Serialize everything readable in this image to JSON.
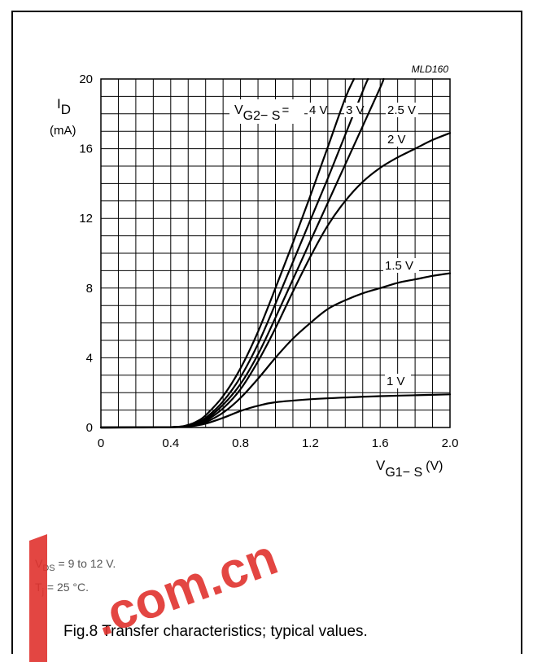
{
  "figure_code": "MLD160",
  "y_axis_label": {
    "main": "I",
    "sub": "D",
    "unit": "(mA)"
  },
  "x_axis_label": {
    "main": "V",
    "sub": "G1− S",
    "unit": "(V)"
  },
  "legend_prefix": {
    "main": "V",
    "sub": "G2− S",
    "suffix": "="
  },
  "notes": {
    "vds": {
      "main": "V",
      "sub": "DS",
      "rest": " = 9 to 12 V."
    },
    "tj": {
      "main": "T",
      "sub": "j",
      "rest": " = 25 °C."
    }
  },
  "caption": "Fig.8  Transfer characteristics; typical values.",
  "watermark": {
    "text": ".com.cn",
    "color": "#e0322e"
  },
  "chart_data": {
    "type": "line",
    "title": "",
    "xlabel": "VG1-S (V)",
    "ylabel": "ID (mA)",
    "xlim": [
      0,
      2.0
    ],
    "ylim": [
      0,
      20
    ],
    "x_ticks": [
      0,
      0.4,
      0.8,
      1.2,
      1.6,
      2.0
    ],
    "x_tick_labels": [
      "0",
      "0.4",
      "0.8",
      "1.2",
      "1.6",
      "2.0"
    ],
    "y_ticks": [
      0,
      4,
      8,
      12,
      16,
      20
    ],
    "y_tick_labels": [
      "0",
      "4",
      "8",
      "12",
      "16",
      "20"
    ],
    "grid": true,
    "series": [
      {
        "name": "4 V",
        "x": [
          0,
          0.4,
          0.5,
          0.55,
          0.6,
          0.7,
          0.8,
          0.9,
          1.0,
          1.1,
          1.2,
          1.3,
          1.4,
          1.45
        ],
        "y": [
          0,
          0.02,
          0.15,
          0.35,
          0.7,
          1.8,
          3.4,
          5.5,
          8.0,
          10.6,
          13.3,
          16.1,
          18.9,
          20.0
        ]
      },
      {
        "name": "3 V",
        "x": [
          0,
          0.4,
          0.5,
          0.55,
          0.6,
          0.7,
          0.8,
          0.9,
          1.0,
          1.1,
          1.2,
          1.3,
          1.4,
          1.5,
          1.53
        ],
        "y": [
          0,
          0.02,
          0.12,
          0.28,
          0.55,
          1.5,
          2.9,
          4.8,
          7.1,
          9.5,
          11.9,
          14.3,
          16.8,
          19.3,
          20.0
        ]
      },
      {
        "name": "2.5 V",
        "x": [
          0,
          0.4,
          0.5,
          0.55,
          0.6,
          0.7,
          0.8,
          0.9,
          1.0,
          1.1,
          1.2,
          1.3,
          1.4,
          1.5,
          1.6,
          1.62
        ],
        "y": [
          0,
          0.02,
          0.1,
          0.22,
          0.45,
          1.3,
          2.5,
          4.2,
          6.3,
          8.5,
          10.7,
          12.9,
          15.1,
          17.3,
          19.5,
          20.0
        ]
      },
      {
        "name": "2 V",
        "x": [
          0,
          0.4,
          0.5,
          0.55,
          0.6,
          0.7,
          0.8,
          0.9,
          1.0,
          1.1,
          1.2,
          1.3,
          1.4,
          1.5,
          1.6,
          1.7,
          1.8,
          1.9,
          2.0
        ],
        "y": [
          0,
          0.02,
          0.08,
          0.18,
          0.38,
          1.1,
          2.2,
          3.8,
          5.7,
          7.8,
          9.8,
          11.6,
          13.0,
          14.1,
          14.9,
          15.5,
          16.0,
          16.5,
          16.9
        ]
      },
      {
        "name": "1.5 V",
        "x": [
          0,
          0.4,
          0.5,
          0.55,
          0.6,
          0.7,
          0.8,
          0.9,
          1.0,
          1.1,
          1.2,
          1.3,
          1.4,
          1.5,
          1.6,
          1.7,
          1.8,
          1.9,
          2.0
        ],
        "y": [
          0,
          0.02,
          0.07,
          0.15,
          0.3,
          0.85,
          1.7,
          2.8,
          4.0,
          5.1,
          6.0,
          6.8,
          7.3,
          7.7,
          8.0,
          8.3,
          8.5,
          8.7,
          8.85
        ]
      },
      {
        "name": "1 V",
        "x": [
          0,
          0.4,
          0.5,
          0.55,
          0.6,
          0.7,
          0.8,
          0.9,
          1.0,
          1.2,
          1.4,
          1.6,
          1.8,
          2.0
        ],
        "y": [
          0,
          0.02,
          0.06,
          0.12,
          0.22,
          0.55,
          0.95,
          1.25,
          1.45,
          1.62,
          1.72,
          1.8,
          1.85,
          1.9
        ]
      }
    ],
    "series_labels": [
      "4 V",
      "3 V",
      "2.5 V",
      "2 V",
      "1.5 V",
      "1 V"
    ]
  }
}
